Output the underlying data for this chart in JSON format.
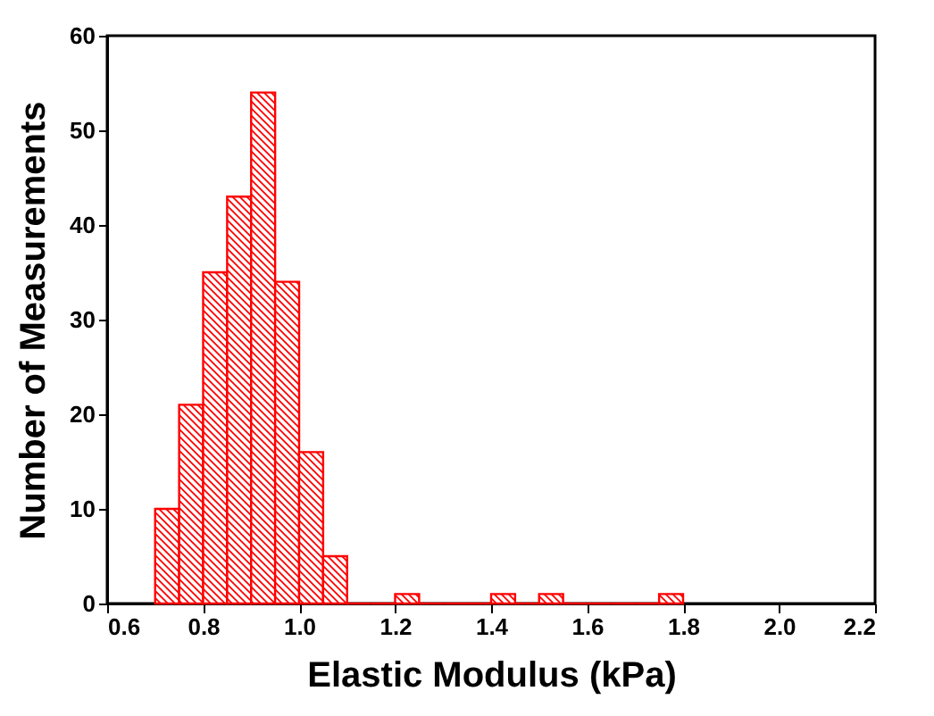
{
  "chart_data": {
    "type": "histogram",
    "xlabel": "Elastic Modulus (kPa)",
    "ylabel": "Number of Measurements",
    "bins": [
      0.7,
      0.75,
      0.8,
      0.85,
      0.9,
      0.95,
      1.0,
      1.05,
      1.1,
      1.15,
      1.2,
      1.25,
      1.3,
      1.35,
      1.4,
      1.45,
      1.5,
      1.55,
      1.6,
      1.65,
      1.7,
      1.75,
      1.8
    ],
    "values": [
      10,
      21,
      35,
      43,
      54,
      34,
      16,
      5,
      0,
      0,
      1,
      0,
      0,
      0,
      1,
      0,
      1,
      0,
      0,
      0,
      0,
      1
    ],
    "color": "#ff0000",
    "xlim": [
      0.6,
      2.2
    ],
    "xticks": [
      0.6,
      0.8,
      {
        "value": 1,
        "label": "1.0"
      },
      1.2,
      1.4,
      1.6,
      1.8,
      {
        "value": 2,
        "label": "2.0"
      },
      2.2
    ],
    "ylim": [
      0,
      60
    ],
    "yticks": [
      0,
      10,
      20,
      30,
      40,
      50,
      60
    ],
    "grid": false
  }
}
